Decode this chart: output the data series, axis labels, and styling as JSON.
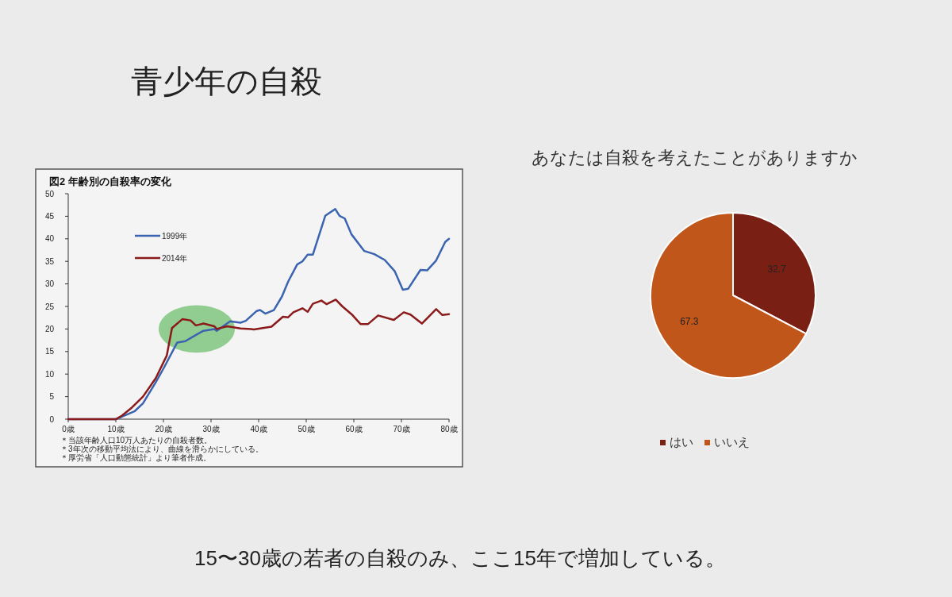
{
  "chart_data": [
    {
      "type": "other",
      "title": "青少年の自殺",
      "annotations": [
        "15〜30歳の若者の自殺のみ、ここ15年で増加している。"
      ]
    },
    {
      "type": "line",
      "title": "図2 年齢別の自殺率の変化",
      "xlim": [
        0,
        80
      ],
      "ylim": [
        0,
        50
      ],
      "xticks": [
        {
          "value": 0,
          "label": "0歳"
        },
        {
          "value": 10,
          "label": "10歳"
        },
        {
          "value": 20,
          "label": "20歳"
        },
        {
          "value": 30,
          "label": "30歳"
        },
        {
          "value": 40,
          "label": "40歳"
        },
        {
          "value": 50,
          "label": "50歳"
        },
        {
          "value": 60,
          "label": "60歳"
        },
        {
          "value": 70,
          "label": "70歳"
        },
        {
          "value": 80,
          "label": "80歳"
        }
      ],
      "yticks": [
        0,
        5,
        10,
        15,
        20,
        25,
        30,
        35,
        40,
        45,
        50
      ],
      "legend": "top left",
      "annotations": [
        "＊当該年齢人口10万人あたりの自殺者数。",
        "＊3年次の移動平均法により、曲線を滑らかにしている。",
        "＊厚労省「人口動態統計」より筆者作成。"
      ],
      "series": [
        {
          "name": "1999年",
          "color": "#3a64b0",
          "x": [
            0,
            10,
            10.7,
            14,
            15.7,
            18.4,
            20.1,
            22.9,
            24.6,
            26.2,
            28.4,
            30.7,
            31.2,
            34,
            36.2,
            37.3,
            39.6,
            40.3,
            41.4,
            43.2,
            44.9,
            46.2,
            48.1,
            49.2,
            50.3,
            51.4,
            54,
            56.1,
            57,
            58.1,
            59.5,
            62.2,
            64.3,
            66.5,
            68.6,
            70.3,
            71.4,
            74,
            75.4,
            77.3,
            79.2,
            80
          ],
          "values": [
            0,
            0,
            0.3,
            1.8,
            3.5,
            8.2,
            11.4,
            17,
            17.3,
            18.3,
            19.6,
            20,
            19.6,
            21.7,
            21.4,
            21.8,
            24,
            24.2,
            23.4,
            24.2,
            27.2,
            30.5,
            34.3,
            35,
            36.5,
            36.5,
            45.1,
            46.6,
            45.1,
            44.5,
            41,
            37.3,
            36.6,
            35.3,
            32.8,
            28.7,
            28.9,
            33.1,
            33,
            35.2,
            39.3,
            40
          ]
        },
        {
          "name": "2014年",
          "color": "#8b1a1a",
          "x": [
            0,
            10,
            11.3,
            13.4,
            15.7,
            18.4,
            20.7,
            21.8,
            24,
            25.7,
            26.8,
            28.4,
            30.7,
            31.2,
            33.4,
            36.2,
            38.4,
            39,
            42.7,
            45.1,
            46.2,
            47.3,
            49.2,
            50.3,
            51.4,
            53.2,
            54.3,
            56.2,
            57.6,
            59.7,
            61.4,
            63,
            65.1,
            68.4,
            70.5,
            71.9,
            74.3,
            77.3,
            78.6,
            80
          ],
          "values": [
            0,
            0,
            0.8,
            2.6,
            5,
            9.1,
            14.1,
            20.2,
            22.2,
            21.9,
            20.8,
            21.2,
            20.6,
            20,
            20.6,
            20.1,
            20,
            19.9,
            20.5,
            22.7,
            22.6,
            23.7,
            24.6,
            23.8,
            25.6,
            26.3,
            25.5,
            26.5,
            25,
            23.1,
            21.1,
            21.1,
            23,
            22,
            23.7,
            23.2,
            21.2,
            24.4,
            23.1,
            23.3
          ]
        }
      ]
    },
    {
      "type": "pie",
      "title": "あなたは自殺を考えたことがありますか",
      "categories": [
        "はい",
        "いいえ"
      ],
      "values": [
        32.7,
        67.3
      ],
      "colors": [
        "#7a1f14",
        "#c0561a"
      ],
      "data_labels": true,
      "legend": "bottom"
    }
  ]
}
